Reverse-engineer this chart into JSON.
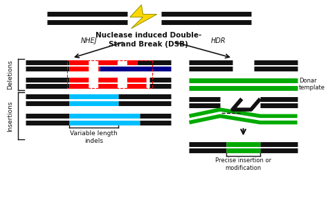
{
  "bg_color": "#ffffff",
  "title_text": "Nuclease induced Double-\nStrand Break (DSB)",
  "nhej_label": "NHEJ",
  "hdr_label": "HDR",
  "deletions_label": "Deletions",
  "insertions_label": "Insertions",
  "variable_length_label": "Variable length\nindels",
  "donor_template_label": "Donar\ntemplate",
  "precise_insertion_label": "Precise insertion or\nmodification",
  "black": "#111111",
  "green": "#00aa00",
  "cyan": "#00bfff",
  "blue": "#00008b",
  "red_dash": "#ff0000",
  "yellow": "#FFD700",
  "dark_yellow": "#999900"
}
